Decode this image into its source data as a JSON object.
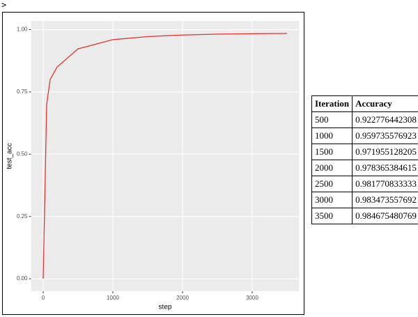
{
  "prompt": ">",
  "chart_data": {
    "type": "line",
    "x_label": "step",
    "y_label": "test_acc",
    "x": [
      0,
      50,
      100,
      200,
      500,
      1000,
      1500,
      2000,
      2500,
      3000,
      3500
    ],
    "series": [
      {
        "name": "test_acc",
        "color": "#e3342f",
        "values": [
          0,
          0.7,
          0.8,
          0.85,
          0.9228,
          0.9597,
          0.972,
          0.9784,
          0.9818,
          0.9835,
          0.9847
        ]
      }
    ],
    "xlim": [
      -175,
      3675
    ],
    "xticks": [
      0,
      1000,
      2000,
      3000
    ],
    "ylim": [
      -0.05,
      1.035
    ],
    "yticks": [
      {
        "value": 0,
        "label": "0.00"
      },
      0.25,
      {
        "value": 0.5,
        "label": "0.50"
      },
      0.75,
      {
        "value": 1,
        "label": "1.00"
      }
    ],
    "grid": true
  },
  "table": {
    "header": [
      "Iteration",
      "Accuracy"
    ],
    "rows": [
      [
        "500",
        "0.922776442308"
      ],
      [
        "1000",
        "0.959735576923"
      ],
      [
        "1500",
        "0.971955128205"
      ],
      [
        "2000",
        "0.978365384615"
      ],
      [
        "2500",
        "0.981770833333"
      ],
      [
        "3000",
        "0.983473557692"
      ],
      [
        "3500",
        "0.984675480769"
      ]
    ]
  }
}
